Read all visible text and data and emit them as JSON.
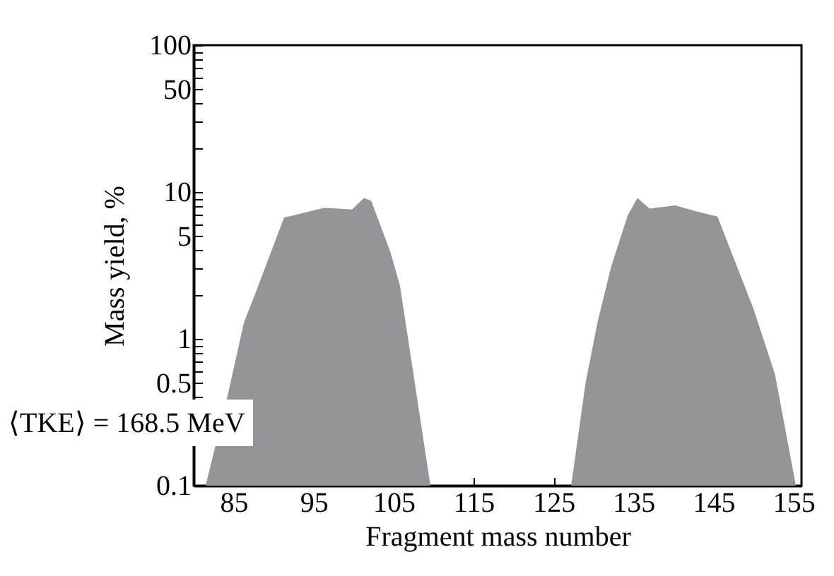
{
  "chart_data": {
    "type": "area",
    "xlabel": "Fragment mass number",
    "ylabel": "Mass yield, %",
    "annotations": [
      "⟨TKE⟩ = 168.5 MeV"
    ],
    "series": [
      {
        "color": "#939598",
        "x": [
          81.5,
          84.2,
          86.3,
          87.5,
          91.3,
          96.3,
          98.1,
          99.8,
          101.3,
          102.2,
          104.6,
          105.8,
          109.6
        ],
        "values": [
          0.1,
          0.4,
          1.3,
          1.9,
          6.7,
          7.8,
          7.7,
          7.6,
          9.1,
          8.7,
          3.9,
          2.3,
          0.1
        ]
      },
      {
        "color": "#939598",
        "x": [
          127.2,
          129.0,
          130.5,
          132.2,
          134.3,
          135.5,
          137.0,
          140.2,
          143.2,
          145.5,
          150.0,
          152.7,
          155.3
        ],
        "values": [
          0.1,
          0.5,
          1.3,
          3.1,
          7.0,
          9.1,
          7.7,
          8.1,
          7.3,
          6.8,
          1.6,
          0.57,
          0.1
        ]
      }
    ],
    "log": "y",
    "xlim": [
      80,
      156
    ],
    "ylim": [
      0.1,
      100
    ],
    "xticks": [
      85,
      95,
      105,
      115,
      125,
      135,
      145,
      155
    ],
    "yticks": [
      0.1,
      {
        "value": 0.2,
        "label": null
      },
      {
        "value": 0.3,
        "label": null
      },
      {
        "value": 0.4,
        "label": null
      },
      0.5,
      {
        "value": 0.6,
        "label": null
      },
      {
        "value": 0.7,
        "label": null
      },
      {
        "value": 0.8,
        "label": null
      },
      {
        "value": 0.9,
        "label": null
      },
      1,
      {
        "value": 2,
        "label": null
      },
      {
        "value": 3,
        "label": null
      },
      {
        "value": 4,
        "label": null
      },
      5,
      {
        "value": 6,
        "label": null
      },
      {
        "value": 7,
        "label": null
      },
      {
        "value": 8,
        "label": null
      },
      {
        "value": 9,
        "label": null
      },
      10,
      {
        "value": 20,
        "label": null
      },
      {
        "value": 30,
        "label": null
      },
      {
        "value": 40,
        "label": null
      },
      50,
      {
        "value": 60,
        "label": null
      },
      {
        "value": 70,
        "label": null
      },
      {
        "value": 80,
        "label": null
      },
      {
        "value": 90,
        "label": null
      },
      100
    ],
    "grid": false
  }
}
